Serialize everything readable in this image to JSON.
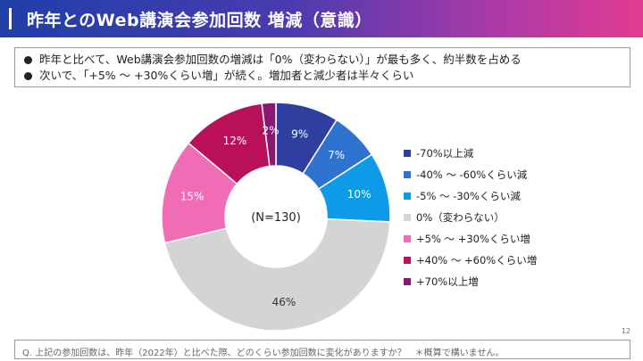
{
  "header": {
    "title": "昨年とのWeb講演会参加回数 増減（意識）"
  },
  "summary": {
    "lines": [
      "昨年と比べて、Web講演会参加回数の増減は「0%（変わらない）」が最も多く、約半数を占める",
      "次いで、「+5% ～ +30%くらい増」が続く。増加者と減少者は半々くらい"
    ]
  },
  "chart_data": {
    "type": "pie",
    "donut": true,
    "center_label": "(N=130)",
    "unit": "%",
    "categories": [
      "-70%以上減",
      "-40% ～ -60%くらい減",
      "-5% ～ -30%くらい減",
      "0%（変わらない）",
      "+5% ～ +30%くらい増",
      "+40% ～ +60%くらい増",
      "+70%以上増"
    ],
    "values": [
      9,
      7,
      10,
      46,
      15,
      12,
      2
    ],
    "labels": [
      "9%",
      "7%",
      "10%",
      "46%",
      "15%",
      "12%",
      "2%"
    ],
    "colors": [
      "#2e3fa0",
      "#2f73d1",
      "#0d9be8",
      "#d4d4d4",
      "#f06cb4",
      "#b8115a",
      "#8a1770"
    ],
    "label_colors": [
      "#ffffff",
      "#ffffff",
      "#ffffff",
      "#333333",
      "#ffffff",
      "#ffffff",
      "#ffffff"
    ],
    "legend_position": "right"
  },
  "footer": {
    "page_number": "12",
    "question": "Q. 上記の参加回数は、昨年（2022年）と比べた際、どのくらい参加回数に変化がありますか？　＊概算で構いません。"
  }
}
